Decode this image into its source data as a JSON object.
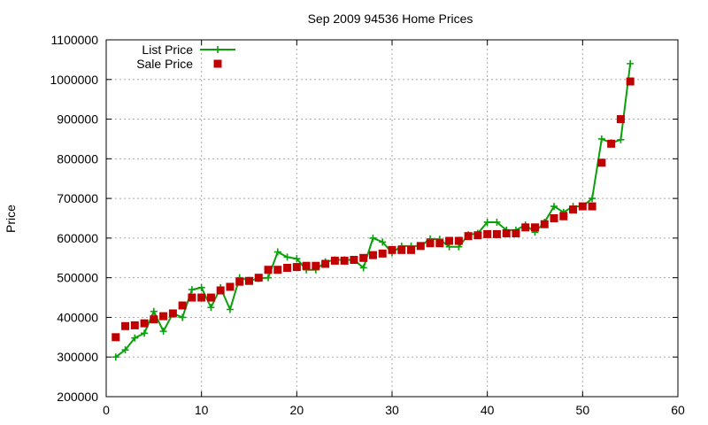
{
  "chart_data": {
    "type": "line",
    "title": "Sep 2009 94536 Home Prices",
    "xlabel": "",
    "ylabel": "Price",
    "xlim": [
      0,
      60
    ],
    "ylim": [
      200000,
      1100000
    ],
    "xticks": [
      0,
      10,
      20,
      30,
      40,
      50,
      60
    ],
    "yticks": [
      200000,
      300000,
      400000,
      500000,
      600000,
      700000,
      800000,
      900000,
      1000000,
      1100000
    ],
    "grid": true,
    "legend_position": "top-left",
    "series": [
      {
        "name": "List Price",
        "style": "line-plus",
        "color": "#0aa00a",
        "x": [
          1,
          2,
          3,
          4,
          5,
          6,
          7,
          8,
          9,
          10,
          11,
          12,
          13,
          14,
          15,
          16,
          17,
          18,
          19,
          20,
          21,
          22,
          23,
          24,
          25,
          26,
          27,
          28,
          29,
          30,
          31,
          32,
          33,
          34,
          35,
          36,
          37,
          38,
          39,
          40,
          41,
          42,
          43,
          44,
          45,
          46,
          47,
          48,
          49,
          50,
          51,
          52,
          53,
          54,
          55
        ],
        "y": [
          300000,
          318000,
          348000,
          360000,
          415000,
          365000,
          410000,
          400000,
          470000,
          475000,
          425000,
          475000,
          420000,
          500000,
          493000,
          498000,
          500000,
          565000,
          552000,
          548000,
          520000,
          520000,
          540000,
          545000,
          545000,
          545000,
          525000,
          600000,
          590000,
          563000,
          580000,
          580000,
          580000,
          598000,
          597000,
          578000,
          578000,
          608000,
          612000,
          640000,
          640000,
          620000,
          620000,
          633000,
          615000,
          640000,
          680000,
          665000,
          680000,
          680000,
          700000,
          850000,
          840000,
          848000,
          1040000
        ]
      },
      {
        "name": "Sale Price",
        "style": "square-marker",
        "color": "#c00000",
        "x": [
          1,
          2,
          3,
          4,
          5,
          6,
          7,
          8,
          9,
          10,
          11,
          12,
          13,
          14,
          15,
          16,
          17,
          18,
          19,
          20,
          21,
          22,
          23,
          24,
          25,
          26,
          27,
          28,
          29,
          30,
          31,
          32,
          33,
          34,
          35,
          36,
          37,
          38,
          39,
          40,
          41,
          42,
          43,
          44,
          45,
          46,
          47,
          48,
          49,
          50,
          51,
          52,
          53,
          54,
          55
        ],
        "y": [
          350000,
          378000,
          380000,
          385000,
          395000,
          403000,
          410000,
          430000,
          450000,
          450000,
          450000,
          468000,
          477000,
          490000,
          492000,
          500000,
          520000,
          520000,
          525000,
          527000,
          530000,
          530000,
          535000,
          543000,
          543000,
          545000,
          550000,
          557000,
          561000,
          570000,
          570000,
          570000,
          580000,
          587000,
          587000,
          593000,
          593000,
          605000,
          607000,
          610000,
          610000,
          612000,
          612000,
          627000,
          627000,
          635000,
          650000,
          655000,
          672000,
          680000,
          680000,
          790000,
          838000,
          900000,
          995000
        ]
      }
    ]
  }
}
